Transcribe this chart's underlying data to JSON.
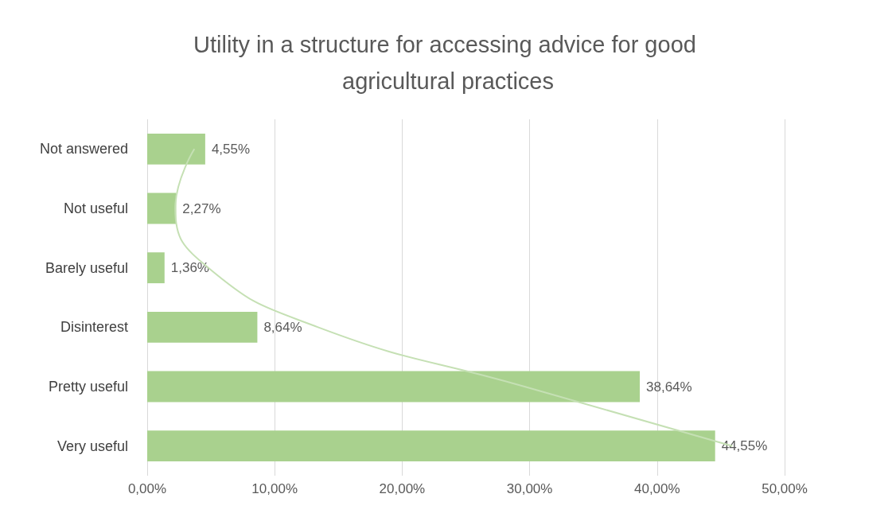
{
  "chart_data": {
    "type": "bar",
    "orientation": "horizontal",
    "title": "Utility in a structure for accessing advice for good agricultural practices",
    "categories": [
      "Not answered",
      "Not useful",
      "Barely useful",
      "Disinterest",
      "Pretty useful",
      "Very useful"
    ],
    "series": [
      {
        "color": "#a9d18e",
        "values": [
          4.55,
          2.27,
          1.36,
          8.64,
          38.64,
          44.55
        ],
        "value_labels": [
          "4,55%",
          "2,27%",
          "1,36%",
          "8,64%",
          "38,64%",
          "44,55%"
        ]
      },
      {
        "type": "line",
        "color": "#c5e0b4",
        "values": [
          3.7,
          2.2,
          4.8,
          13.4,
          29.6,
          45.9
        ]
      }
    ],
    "xlim": [
      0,
      50
    ],
    "xticks": [
      {
        "value": 0,
        "label": "0,00%"
      },
      {
        "value": 10,
        "label": "10,00%"
      },
      {
        "value": 20,
        "label": "20,00%"
      },
      {
        "value": 30,
        "label": "30,00%"
      },
      {
        "value": 40,
        "label": "40,00%"
      },
      {
        "value": 50,
        "label": "50,00%"
      }
    ],
    "grid": "x",
    "marker": "none"
  }
}
